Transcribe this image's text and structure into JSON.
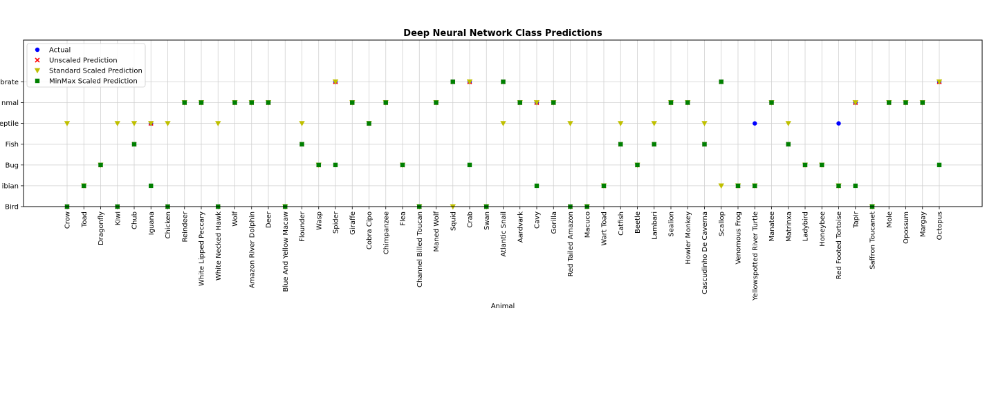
{
  "chart_data": {
    "type": "scatter",
    "title": "Deep Neural Network Class Predictions",
    "xlabel": "Animal",
    "ylabel": "",
    "grid": true,
    "legend_position": "top-left",
    "categories": [
      "Crow",
      "Toad",
      "Dragonfly",
      "Kiwi",
      "Chub",
      "Iguana",
      "Chicken",
      "Reindeer",
      "White Lipped Peccary",
      "White Necked Hawk",
      "Wolf",
      "Amazon River Dolphin",
      "Deer",
      "Blue And Yellow Macaw",
      "Flounder",
      "Wasp",
      "Spider",
      "Giraffe",
      "Cobra Cipo",
      "Chimpanzee",
      "Flea",
      "Channel Billed Toucan",
      "Maned Wolf",
      "Squid",
      "Crab",
      "Swan",
      "Atlantic Snail",
      "Aardvark",
      "Cavy",
      "Gorilla",
      "Red Tailed Amazon",
      "Macuco",
      "Wart Toad",
      "Catfish",
      "Beetle",
      "Lambari",
      "Sealion",
      "Howler Monkey",
      "Cascudinho De Caverna",
      "Scallop",
      "Venomous Frog",
      "Yellowspotted River Turtle",
      "Manatee",
      "Matrinxa",
      "Ladybird",
      "Honeybee",
      "Red Footed Tortoise",
      "Tapir",
      "Saffron Toucanet",
      "Mole",
      "Opossum",
      "Margay",
      "Octopus"
    ],
    "y_classes": [
      "Bird",
      "Amphibian",
      "Bug",
      "Fish",
      "Reptile",
      "Mammal",
      "Invertebrate"
    ],
    "y_tick_labels": [
      "Bird",
      "ibian",
      "Bug",
      "Fish",
      "eptile",
      "nmal",
      "brate"
    ],
    "series": [
      {
        "name": "Actual",
        "marker": "circle",
        "color": "#0000ff",
        "values": [
          "Bird",
          "Amphibian",
          "Bug",
          "Bird",
          "Fish",
          "Reptile",
          "Bird",
          "Mammal",
          "Mammal",
          "Bird",
          "Mammal",
          "Mammal",
          "Mammal",
          "Bird",
          "Fish",
          "Bug",
          "Invertebrate",
          "Mammal",
          "Reptile",
          "Mammal",
          "Bug",
          "Bird",
          "Mammal",
          "Invertebrate",
          "Invertebrate",
          "Bird",
          "Invertebrate",
          "Mammal",
          "Mammal",
          "Mammal",
          "Bird",
          "Bird",
          "Amphibian",
          "Fish",
          "Bug",
          "Fish",
          "Mammal",
          "Mammal",
          "Fish",
          "Invertebrate",
          "Amphibian",
          "Reptile",
          "Mammal",
          "Fish",
          "Bug",
          "Bug",
          "Reptile",
          "Mammal",
          "Bird",
          "Mammal",
          "Mammal",
          "Mammal",
          "Invertebrate"
        ]
      },
      {
        "name": "Unscaled Prediction",
        "marker": "x",
        "color": "#ff0000",
        "values": [
          "Bird",
          "Amphibian",
          "Bug",
          "Bird",
          "Fish",
          "Reptile",
          "Bird",
          "Mammal",
          "Mammal",
          "Bird",
          "Mammal",
          "Mammal",
          "Mammal",
          "Bird",
          "Fish",
          "Bug",
          "Invertebrate",
          "Mammal",
          "Reptile",
          "Mammal",
          "Bug",
          "Bird",
          "Mammal",
          "Invertebrate",
          "Invertebrate",
          "Bird",
          "Invertebrate",
          "Mammal",
          "Mammal",
          "Mammal",
          "Bird",
          "Bird",
          "Amphibian",
          "Fish",
          "Bug",
          "Fish",
          "Mammal",
          "Mammal",
          "Fish",
          "Invertebrate",
          "Amphibian",
          "Amphibian",
          "Mammal",
          "Fish",
          "Bug",
          "Bug",
          "Amphibian",
          "Mammal",
          "Bird",
          "Mammal",
          "Mammal",
          "Mammal",
          "Invertebrate"
        ]
      },
      {
        "name": "Standard Scaled Prediction",
        "marker": "triangle-down",
        "color": "#bfbf00",
        "values": [
          "Reptile",
          "Amphibian",
          "Bug",
          "Reptile",
          "Reptile",
          "Reptile",
          "Reptile",
          "Mammal",
          "Mammal",
          "Reptile",
          "Mammal",
          "Mammal",
          "Mammal",
          "Bird",
          "Reptile",
          "Bug",
          "Invertebrate",
          "Mammal",
          "Reptile",
          "Mammal",
          "Bug",
          "Bird",
          "Mammal",
          "Bird",
          "Invertebrate",
          "Bird",
          "Reptile",
          "Mammal",
          "Mammal",
          "Mammal",
          "Reptile",
          "Bird",
          "Amphibian",
          "Reptile",
          "Bug",
          "Reptile",
          "Mammal",
          "Mammal",
          "Reptile",
          "Amphibian",
          "Amphibian",
          "Amphibian",
          "Mammal",
          "Reptile",
          "Bug",
          "Bug",
          "Amphibian",
          "Mammal",
          "Bird",
          "Mammal",
          "Mammal",
          "Mammal",
          "Invertebrate"
        ]
      },
      {
        "name": "MinMax Scaled Prediction",
        "marker": "square",
        "color": "#008000",
        "values": [
          "Bird",
          "Amphibian",
          "Bug",
          "Bird",
          "Fish",
          "Amphibian",
          "Bird",
          "Mammal",
          "Mammal",
          "Bird",
          "Mammal",
          "Mammal",
          "Mammal",
          "Bird",
          "Fish",
          "Bug",
          "Bug",
          "Mammal",
          "Reptile",
          "Mammal",
          "Bug",
          "Bird",
          "Mammal",
          "Invertebrate",
          "Bug",
          "Bird",
          "Invertebrate",
          "Mammal",
          "Amphibian",
          "Mammal",
          "Bird",
          "Bird",
          "Amphibian",
          "Fish",
          "Bug",
          "Fish",
          "Mammal",
          "Mammal",
          "Fish",
          "Invertebrate",
          "Amphibian",
          "Amphibian",
          "Mammal",
          "Fish",
          "Bug",
          "Bug",
          "Amphibian",
          "Amphibian",
          "Bird",
          "Mammal",
          "Mammal",
          "Mammal",
          "Bug"
        ]
      }
    ]
  }
}
